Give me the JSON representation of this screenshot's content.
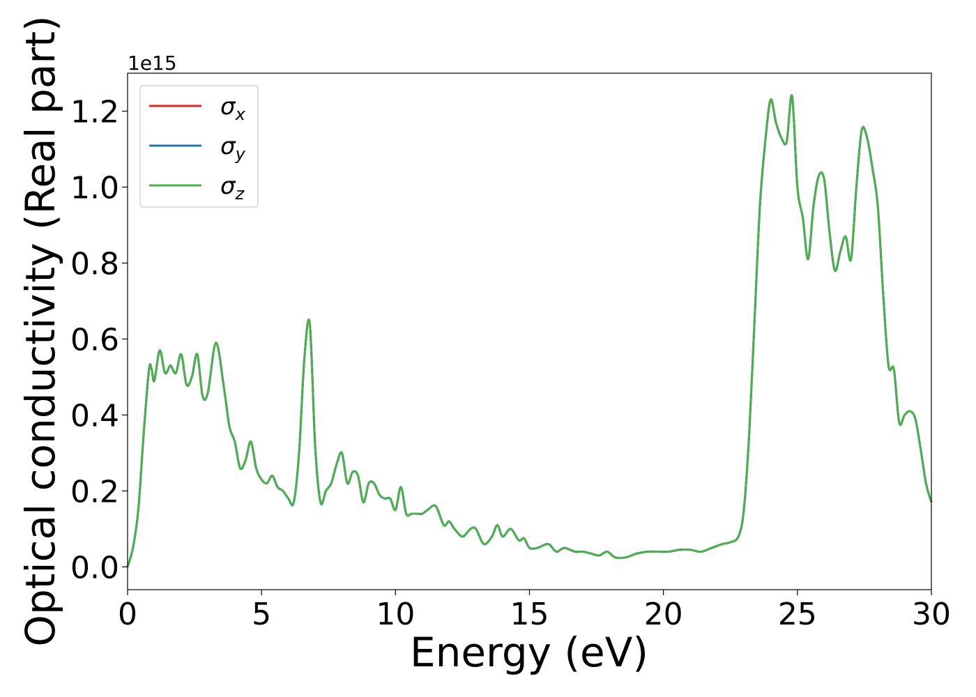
{
  "chart_data": {
    "type": "line",
    "xlabel": "Energy (eV)",
    "ylabel": "Optical conductivity (Real part)",
    "offset_label": "1e15",
    "xlim": [
      0,
      30
    ],
    "ylim": [
      -0.06,
      1.3
    ],
    "xticks": [
      0,
      5,
      10,
      15,
      20,
      25,
      30
    ],
    "xtick_labels": [
      "0",
      "5",
      "10",
      "15",
      "20",
      "25",
      "30"
    ],
    "yticks": [
      0.0,
      0.2,
      0.4,
      0.6,
      0.8,
      1.0,
      1.2
    ],
    "ytick_labels": [
      "0.0",
      "0.2",
      "0.4",
      "0.6",
      "0.8",
      "1.0",
      "1.2"
    ],
    "grid": false,
    "legend_position": "top-left",
    "legend": [
      {
        "sym": "σ",
        "sub": "x"
      },
      {
        "sym": "σ",
        "sub": "y"
      },
      {
        "sym": "σ",
        "sub": "z"
      }
    ],
    "series": [
      {
        "color": "#d62728",
        "legend_index": 0
      },
      {
        "color": "#1f77b4",
        "legend_index": 1
      },
      {
        "color": "#4caf50",
        "legend_index": 2
      }
    ],
    "x": [
      0,
      0.2,
      0.4,
      0.6,
      0.8,
      0.9,
      1.0,
      1.2,
      1.4,
      1.6,
      1.8,
      2.0,
      2.2,
      2.4,
      2.6,
      2.8,
      3.0,
      3.3,
      3.6,
      3.8,
      4.0,
      4.2,
      4.4,
      4.6,
      4.8,
      5.0,
      5.2,
      5.4,
      5.6,
      5.8,
      6.0,
      6.2,
      6.4,
      6.6,
      6.8,
      7.0,
      7.2,
      7.4,
      7.6,
      7.8,
      8.0,
      8.2,
      8.4,
      8.6,
      8.8,
      9.0,
      9.2,
      9.4,
      9.6,
      9.8,
      10.0,
      10.2,
      10.4,
      10.6,
      10.8,
      11.0,
      11.2,
      11.5,
      11.8,
      12.0,
      12.2,
      12.5,
      12.8,
      13.0,
      13.3,
      13.6,
      13.8,
      14.0,
      14.3,
      14.6,
      14.8,
      15.0,
      15.3,
      15.7,
      16.0,
      16.3,
      16.7,
      17.0,
      17.3,
      17.6,
      17.9,
      18.2,
      18.6,
      19.0,
      19.4,
      19.8,
      20.2,
      20.6,
      21.0,
      21.4,
      21.8,
      22.2,
      22.5,
      22.8,
      23.0,
      23.2,
      23.4,
      23.6,
      23.8,
      24.0,
      24.2,
      24.4,
      24.6,
      24.8,
      25.0,
      25.2,
      25.4,
      25.6,
      25.8,
      26.0,
      26.2,
      26.4,
      26.6,
      26.8,
      27.0,
      27.2,
      27.4,
      27.6,
      27.8,
      28.0,
      28.2,
      28.4,
      28.6,
      28.8,
      29.0,
      29.2,
      29.4,
      29.6,
      29.8,
      30.0
    ],
    "y": [
      0.0,
      0.05,
      0.15,
      0.35,
      0.52,
      0.52,
      0.49,
      0.57,
      0.51,
      0.53,
      0.51,
      0.56,
      0.48,
      0.5,
      0.56,
      0.45,
      0.46,
      0.59,
      0.47,
      0.37,
      0.33,
      0.26,
      0.28,
      0.33,
      0.26,
      0.23,
      0.22,
      0.24,
      0.21,
      0.2,
      0.18,
      0.17,
      0.3,
      0.55,
      0.64,
      0.32,
      0.17,
      0.2,
      0.22,
      0.27,
      0.3,
      0.22,
      0.25,
      0.24,
      0.17,
      0.22,
      0.22,
      0.19,
      0.18,
      0.18,
      0.15,
      0.21,
      0.14,
      0.14,
      0.14,
      0.14,
      0.15,
      0.16,
      0.11,
      0.12,
      0.1,
      0.08,
      0.1,
      0.1,
      0.06,
      0.08,
      0.11,
      0.08,
      0.1,
      0.07,
      0.075,
      0.05,
      0.05,
      0.06,
      0.04,
      0.05,
      0.04,
      0.04,
      0.035,
      0.03,
      0.04,
      0.025,
      0.025,
      0.035,
      0.04,
      0.04,
      0.04,
      0.045,
      0.045,
      0.04,
      0.05,
      0.06,
      0.065,
      0.08,
      0.15,
      0.35,
      0.65,
      0.95,
      1.12,
      1.23,
      1.17,
      1.13,
      1.12,
      1.24,
      1.0,
      0.92,
      0.81,
      0.95,
      1.03,
      1.02,
      0.88,
      0.78,
      0.83,
      0.87,
      0.81,
      1.0,
      1.15,
      1.13,
      1.05,
      0.95,
      0.72,
      0.53,
      0.52,
      0.38,
      0.4,
      0.41,
      0.39,
      0.31,
      0.22,
      0.17
    ]
  }
}
